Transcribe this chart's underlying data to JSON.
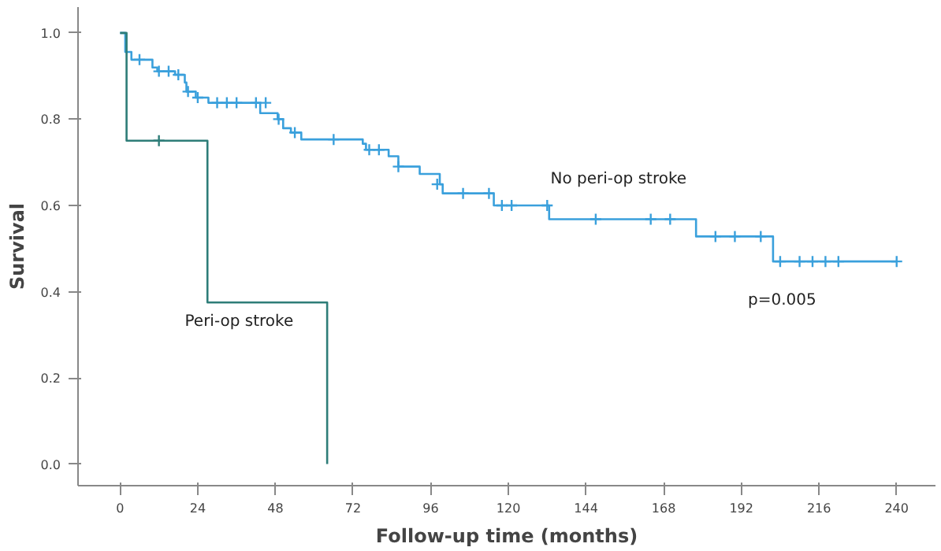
{
  "chart_data": {
    "type": "step",
    "xlabel": "Follow-up time (months)",
    "ylabel": "Survival",
    "xlim": [
      -13,
      252
    ],
    "ylim": [
      -0.05,
      1.06
    ],
    "xticks": [
      0,
      24,
      48,
      72,
      96,
      120,
      144,
      168,
      192,
      216,
      240
    ],
    "yticks": [
      {
        "value": 0,
        "label": "0.0"
      },
      {
        "value": 0.2,
        "label": "0.2"
      },
      {
        "value": 0.4,
        "label": "0.4"
      },
      {
        "value": 0.6,
        "label": "0.6"
      },
      {
        "value": 0.8,
        "label": "0.8"
      },
      {
        "value": 1,
        "label": "1.0"
      }
    ],
    "grid": false,
    "legend": false,
    "line_style": "solid",
    "annotations": [
      "p=0.005"
    ],
    "series": [
      {
        "name": "No peri-op stroke",
        "color": "#3aa0dc",
        "x": [
          0,
          1.6,
          3.5,
          10,
          11.5,
          17,
          20,
          20.5,
          23.4,
          27.3,
          43.3,
          48.7,
          50.4,
          52.8,
          56,
          75,
          76,
          83,
          86,
          92.6,
          98.8,
          99.7,
          115.5,
          132.6,
          178,
          201.8,
          240
        ],
        "values": [
          1.0,
          0.956,
          0.938,
          0.92,
          0.911,
          0.903,
          0.885,
          0.864,
          0.85,
          0.838,
          0.814,
          0.8,
          0.779,
          0.769,
          0.753,
          0.743,
          0.729,
          0.714,
          0.69,
          0.673,
          0.649,
          0.628,
          0.6,
          0.568,
          0.528,
          0.47,
          0.47
        ]
      },
      {
        "name": "Peri-op stroke",
        "color": "#2e7d78",
        "x": [
          0,
          2,
          27,
          64
        ],
        "values": [
          1.0,
          0.75,
          0.375,
          0.0
        ]
      },
      {
        "type": "scatter",
        "marker": "cross",
        "color": "#3aa0dc",
        "x": [
          6,
          12,
          15,
          18,
          21,
          24,
          30,
          33,
          36,
          42,
          45,
          49,
          54,
          66,
          77,
          80,
          86,
          98,
          106,
          114,
          118,
          121,
          132,
          147,
          164,
          170,
          184,
          190,
          198,
          204,
          210,
          214,
          218,
          222,
          240
        ],
        "values": [
          0.938,
          0.911,
          0.911,
          0.903,
          0.864,
          0.85,
          0.838,
          0.838,
          0.838,
          0.838,
          0.838,
          0.8,
          0.769,
          0.753,
          0.729,
          0.729,
          0.69,
          0.649,
          0.628,
          0.628,
          0.6,
          0.6,
          0.6,
          0.568,
          0.568,
          0.568,
          0.528,
          0.528,
          0.528,
          0.47,
          0.47,
          0.47,
          0.47,
          0.47,
          0.47
        ]
      },
      {
        "type": "scatter",
        "marker": "cross",
        "color": "#2e7d78",
        "x": [
          12
        ],
        "values": [
          0.75
        ]
      }
    ]
  }
}
